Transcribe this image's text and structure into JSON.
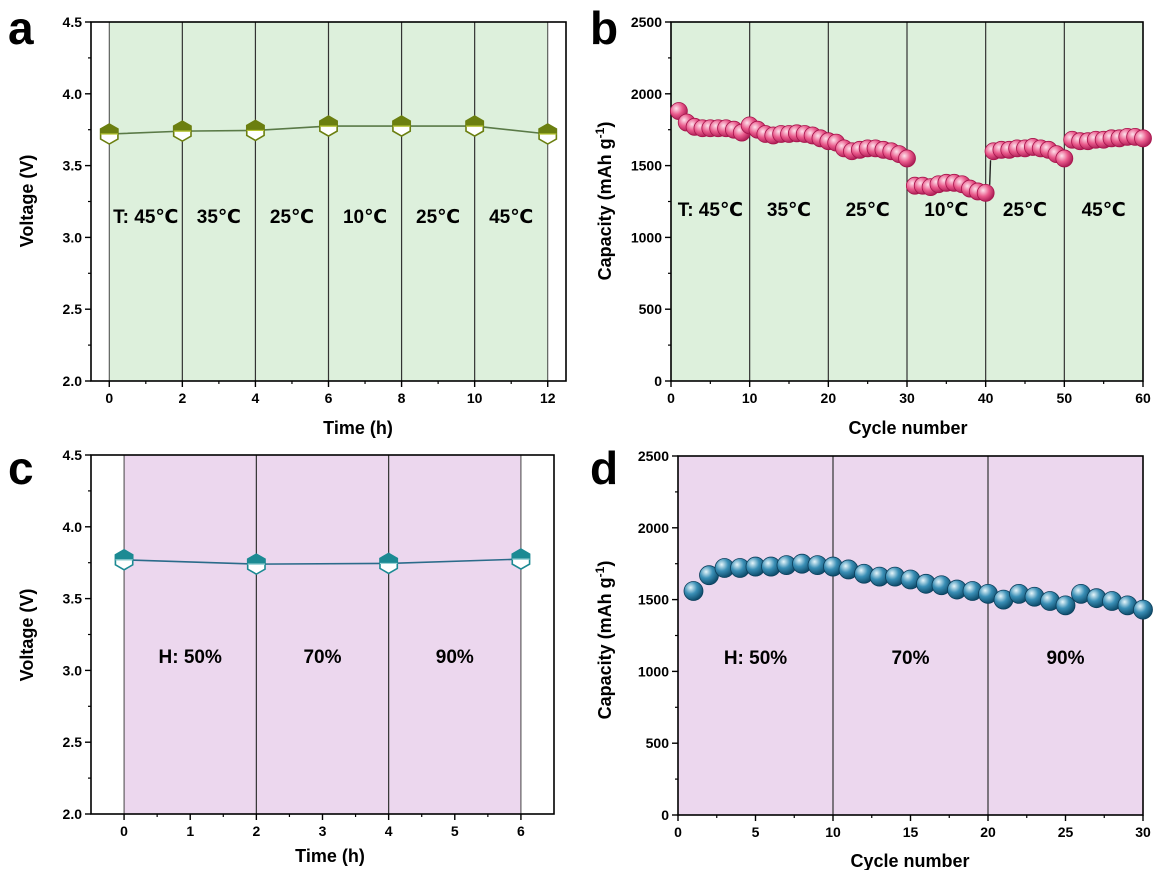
{
  "colors": {
    "panel_a_bg": "#ddf0dc",
    "panel_b_bg": "#ddf0dc",
    "panel_c_bg": "#ecd7ee",
    "panel_d_bg": "#ecd7ee",
    "olive_marker": "#6b7f10",
    "olive_marker_light": "#b7c533",
    "olive_line": "#5a7a47",
    "pink_marker": "#e0457a",
    "pink_marker_light": "#fbc6d8",
    "teal_marker": "#1c8a93",
    "teal_marker_light": "#9ad3d6",
    "teal_line": "#2b6b8a",
    "blue_marker": "#1b6f96",
    "blue_marker_light": "#d6eef7"
  },
  "chart_data": [
    {
      "panel": "a",
      "type": "line",
      "xlabel": "Time (h)",
      "ylabel": "Voltage (V)",
      "xlim": [
        -0.5,
        12.5
      ],
      "ylim": [
        2.0,
        4.5
      ],
      "xticks": [
        0,
        2,
        4,
        6,
        8,
        10,
        12
      ],
      "yticks": [
        2.0,
        2.5,
        3.0,
        3.5,
        4.0,
        4.5
      ],
      "ytick_labels": [
        "2.0",
        "2.5",
        "3.0",
        "3.5",
        "4.0",
        "4.5"
      ],
      "dividers": [
        2,
        4,
        6,
        8,
        10
      ],
      "region_labels": [
        "T: 45℃",
        "35℃",
        "25℃",
        "10℃",
        "25℃",
        "45℃"
      ],
      "region_label_y": 3.1,
      "marker": "hexagon-half",
      "series": [
        {
          "x": [
            0,
            2,
            4,
            6,
            8,
            10,
            12
          ],
          "values": [
            3.72,
            3.74,
            3.745,
            3.775,
            3.775,
            3.775,
            3.72
          ]
        }
      ]
    },
    {
      "panel": "b",
      "type": "scatter",
      "xlabel": "Cycle number",
      "ylabel": "Capacity (mAh g⁻¹)",
      "xlim": [
        0,
        60
      ],
      "ylim": [
        0,
        2500
      ],
      "xticks": [
        0,
        10,
        20,
        30,
        40,
        50,
        60
      ],
      "yticks": [
        0,
        500,
        1000,
        1500,
        2000,
        2500
      ],
      "ytick_labels": [
        "0",
        "500",
        "1000",
        "1500",
        "2000",
        "2500"
      ],
      "dividers": [
        10,
        20,
        30,
        40,
        50
      ],
      "region_labels": [
        "T: 45℃",
        "35℃",
        "25℃",
        "10℃",
        "25℃",
        "45℃"
      ],
      "region_label_y": 1150,
      "marker": "sphere",
      "series": [
        {
          "x": [
            1,
            2,
            3,
            4,
            5,
            6,
            7,
            8,
            9,
            10,
            11,
            12,
            13,
            14,
            15,
            16,
            17,
            18,
            19,
            20,
            21,
            22,
            23,
            24,
            25,
            26,
            27,
            28,
            29,
            30,
            31,
            32,
            33,
            34,
            35,
            36,
            37,
            38,
            39,
            40,
            41,
            42,
            43,
            44,
            45,
            46,
            47,
            48,
            49,
            50,
            51,
            52,
            53,
            54,
            55,
            56,
            57,
            58,
            59,
            60
          ],
          "values": [
            1880,
            1800,
            1770,
            1760,
            1760,
            1760,
            1760,
            1750,
            1730,
            1780,
            1750,
            1720,
            1710,
            1720,
            1720,
            1725,
            1720,
            1710,
            1690,
            1670,
            1660,
            1620,
            1600,
            1610,
            1620,
            1620,
            1610,
            1600,
            1580,
            1550,
            1360,
            1360,
            1350,
            1370,
            1380,
            1380,
            1370,
            1340,
            1320,
            1310,
            1600,
            1610,
            1610,
            1620,
            1620,
            1630,
            1620,
            1610,
            1580,
            1550,
            1680,
            1670,
            1670,
            1680,
            1680,
            1690,
            1690,
            1700,
            1700,
            1690
          ]
        }
      ]
    },
    {
      "panel": "c",
      "type": "line",
      "xlabel": "Time (h)",
      "ylabel": "Voltage (V)",
      "xlim": [
        -0.5,
        6.5
      ],
      "ylim": [
        2.0,
        4.5
      ],
      "xticks": [
        0,
        1,
        2,
        3,
        4,
        5,
        6
      ],
      "yticks": [
        2.0,
        2.5,
        3.0,
        3.5,
        4.0,
        4.5
      ],
      "ytick_labels": [
        "2.0",
        "2.5",
        "3.0",
        "3.5",
        "4.0",
        "4.5"
      ],
      "dividers": [
        2,
        4
      ],
      "region_labels": [
        "H: 50%",
        "70%",
        "90%"
      ],
      "region_label_y": 3.05,
      "marker": "hexagon-half",
      "series": [
        {
          "x": [
            0,
            2,
            4,
            6
          ],
          "values": [
            3.77,
            3.74,
            3.745,
            3.775
          ]
        }
      ]
    },
    {
      "panel": "d",
      "type": "scatter",
      "xlabel": "Cycle number",
      "ylabel": "Capacity (mAh g⁻¹)",
      "xlim": [
        0,
        30
      ],
      "ylim": [
        0,
        2500
      ],
      "xticks": [
        0,
        5,
        10,
        15,
        20,
        25,
        30
      ],
      "yticks": [
        0,
        500,
        1000,
        1500,
        2000,
        2500
      ],
      "ytick_labels": [
        "0",
        "500",
        "1000",
        "1500",
        "2000",
        "2500"
      ],
      "dividers": [
        10,
        20
      ],
      "region_labels": [
        "H: 50%",
        "70%",
        "90%"
      ],
      "region_label_y": 1050,
      "marker": "sphere",
      "series": [
        {
          "x": [
            1,
            2,
            3,
            4,
            5,
            6,
            7,
            8,
            9,
            10,
            11,
            12,
            13,
            14,
            15,
            16,
            17,
            18,
            19,
            20,
            21,
            22,
            23,
            24,
            25,
            26,
            27,
            28,
            29,
            30
          ],
          "values": [
            1560,
            1670,
            1720,
            1720,
            1730,
            1730,
            1740,
            1750,
            1740,
            1730,
            1710,
            1680,
            1660,
            1660,
            1640,
            1610,
            1600,
            1570,
            1560,
            1540,
            1500,
            1540,
            1520,
            1490,
            1460,
            1540,
            1510,
            1490,
            1460,
            1430
          ]
        }
      ]
    }
  ],
  "panel_letters": [
    "a",
    "b",
    "c",
    "d"
  ]
}
